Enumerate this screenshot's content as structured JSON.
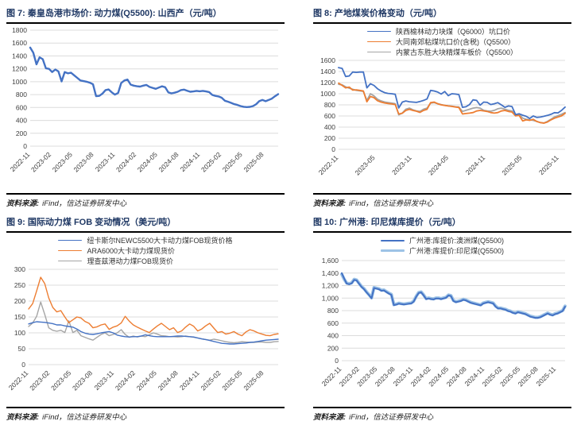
{
  "page": {
    "background": "#FFFFFF"
  },
  "figures": [
    {
      "title": "图 7:  秦皇岛港市场价: 动力煤(Q5500): 山西产（元/吨）",
      "source_label": "资料来源:",
      "source_text": "iFind，信达证券研发中心"
    },
    {
      "title": "图 8:  产地煤炭价格变动（元/吨）",
      "source_label": "资料来源:",
      "source_text": "iFind，信达证券研发中心"
    },
    {
      "title": "图 9:  国际动力煤 FOB 变动情况（美元/吨）",
      "source_label": "资料来源:",
      "source_text": "iFind，信达证券研发中心"
    },
    {
      "title": "图 10:  广州港: 印尼煤库提价（元/吨）",
      "source_label": "资料来源:",
      "source_text": "iFind，信达证券研发中心"
    }
  ],
  "colors": {
    "title_navy": "#1F3864",
    "line_blue": "#4472C4",
    "line_orange": "#ED7D31",
    "line_gray": "#A5A5A5",
    "line_lightblue": "#9DC3E6",
    "gridline": "#DCDCDC"
  },
  "chart_data": [
    {
      "type": "line",
      "title": "秦皇岛港市场价: 动力煤(Q5500): 山西产（元/吨）",
      "ylim": [
        0,
        1800
      ],
      "y_ticks": [
        1800,
        1600,
        1400,
        1200,
        1000,
        800,
        600,
        400,
        200,
        0
      ],
      "y_tick_labels": [
        "1800",
        "1600",
        "1400",
        "1200",
        "1000",
        "800",
        "600",
        "400",
        "200",
        "0"
      ],
      "categories": [
        "2022-11",
        "2023-02",
        "2023-05",
        "2023-08",
        "2023-11",
        "2024-02",
        "2024-05",
        "2024-08",
        "2024-11",
        "2025-02",
        "2025-05",
        "2025-08"
      ],
      "tick_months": [
        0,
        3,
        6,
        9,
        12,
        15,
        18,
        21,
        24,
        27,
        30,
        33
      ],
      "total_months": 35,
      "grid": "horizontal",
      "legend_position": "none",
      "series": [
        {
          "name": "秦皇岛港市场价:动力煤(Q5500):山西产",
          "color": "#4472C4",
          "width": 2.4,
          "values": [
            1530,
            1450,
            1270,
            1380,
            1350,
            1210,
            1200,
            1150,
            1190,
            1160,
            1005,
            1150,
            1130,
            1140,
            1100,
            1060,
            1020,
            1010,
            1000,
            985,
            960,
            775,
            780,
            815,
            870,
            880,
            835,
            800,
            825,
            980,
            1020,
            1035,
            955,
            940,
            930,
            925,
            940,
            950,
            920,
            905,
            890,
            910,
            930,
            915,
            835,
            820,
            830,
            845,
            870,
            878,
            860,
            845,
            850,
            858,
            852,
            858,
            850,
            840,
            795,
            780,
            772,
            752,
            705,
            690,
            672,
            652,
            640,
            622,
            612,
            606,
            610,
            622,
            652,
            700,
            718,
            698,
            718,
            738,
            775,
            808
          ]
        }
      ]
    },
    {
      "type": "line",
      "title": "产地煤炭价格变动（元/吨）",
      "ylim": [
        0,
        1600
      ],
      "y_ticks": [
        1600,
        1400,
        1200,
        1000,
        800,
        600,
        400,
        200,
        0
      ],
      "y_tick_labels": [
        "1600",
        "1400",
        "1200",
        "1000",
        "800",
        "600",
        "400",
        "200",
        "0"
      ],
      "categories": [
        "2022-11",
        "2023-05",
        "2023-11",
        "2024-05",
        "2024-11",
        "2025-05",
        "2025-11"
      ],
      "tick_months": [
        0,
        6,
        12,
        18,
        24,
        30,
        36
      ],
      "total_months": 37,
      "grid": "horizontal",
      "legend_position": "top",
      "series": [
        {
          "name": "陕西榆林动力块煤（Q6000）坑口价",
          "color": "#4472C4",
          "width": 1.8,
          "values": [
            1470,
            1455,
            1310,
            1320,
            1390,
            1385,
            1390,
            1390,
            1105,
            1180,
            1150,
            1090,
            1050,
            1020,
            1005,
            1000,
            990,
            745,
            850,
            870,
            855,
            850,
            845,
            860,
            880,
            905,
            1060,
            1050,
            1030,
            995,
            1040,
            965,
            1000,
            995,
            985,
            755,
            765,
            805,
            890,
            880,
            795,
            850,
            845,
            805,
            820,
            840,
            800,
            755,
            780,
            770,
            625,
            640,
            615,
            595,
            555,
            600,
            575,
            580,
            595,
            610,
            630,
            660,
            655,
            700,
            760
          ]
        },
        {
          "name": "大同南郊粘煤坑口价(含税)（Q5500）",
          "color": "#ED7D31",
          "width": 1.8,
          "values": [
            1190,
            1150,
            1105,
            1120,
            1065,
            1070,
            1060,
            1050,
            855,
            950,
            930,
            875,
            850,
            835,
            825,
            815,
            805,
            635,
            650,
            700,
            720,
            700,
            685,
            665,
            700,
            720,
            840,
            850,
            820,
            800,
            790,
            780,
            772,
            762,
            752,
            635,
            645,
            652,
            662,
            690,
            700,
            692,
            682,
            662,
            652,
            662,
            690,
            700,
            682,
            672,
            602,
            612,
            512,
            530,
            522,
            540,
            502,
            482,
            472,
            492,
            530,
            560,
            582,
            602,
            648
          ]
        },
        {
          "name": "内蒙古东胜大块精煤车板价（Q5500）",
          "color": "#A5A5A5",
          "width": 1.8,
          "values": [
            1170,
            1160,
            1125,
            1100,
            1080,
            1062,
            1052,
            1042,
            882,
            1000,
            962,
            902,
            872,
            852,
            842,
            832,
            822,
            622,
            652,
            722,
            742,
            712,
            692,
            682,
            722,
            742,
            832,
            842,
            822,
            806,
            792,
            782,
            776,
            766,
            762,
            682,
            702,
            722,
            742,
            752,
            742,
            702,
            692,
            686,
            702,
            730,
            742,
            722,
            702,
            692,
            622,
            632,
            562,
            542,
            532,
            522,
            502,
            482,
            475,
            502,
            542,
            582,
            605,
            632,
            662
          ]
        }
      ]
    },
    {
      "type": "line",
      "title": "国际动力煤 FOB 变动情况（美元/吨）",
      "ylim": [
        0,
        300
      ],
      "y_ticks": [
        300,
        250,
        200,
        150,
        100,
        50,
        0
      ],
      "y_tick_labels": [
        "300",
        "250",
        "200",
        "150",
        "100",
        "50",
        "0"
      ],
      "categories": [
        "2022-11",
        "2023-02",
        "2023-05",
        "2023-08",
        "2023-11",
        "2024-02",
        "2024-05",
        "2024-08",
        "2024-11",
        "2025-02",
        "2025-05",
        "2025-08"
      ],
      "tick_months": [
        0,
        3,
        6,
        9,
        12,
        15,
        18,
        21,
        24,
        27,
        30,
        33
      ],
      "total_months": 35,
      "grid": "horizontal",
      "legend_position": "top",
      "series": [
        {
          "name": "纽卡斯尔NEWC5500大卡动力煤FOB现货价格",
          "color": "#4472C4",
          "width": 1.4,
          "values": [
            128,
            132,
            135,
            134,
            133,
            131,
            129,
            125,
            125,
            122,
            120,
            118,
            112,
            104,
            99,
            96,
            95,
            97,
            100,
            102,
            104,
            100,
            93,
            90,
            88,
            87,
            88,
            88,
            90,
            94,
            91,
            89,
            88,
            88,
            88,
            88,
            89,
            90,
            90,
            89,
            88,
            87,
            84,
            81,
            79,
            76,
            73,
            70,
            67,
            66,
            65,
            65,
            66,
            67,
            68,
            70,
            71,
            73,
            75,
            77,
            78,
            79,
            80
          ]
        },
        {
          "name": "ARA6000大卡动力煤现货价",
          "color": "#ED7D31",
          "width": 1.4,
          "values": [
            175,
            192,
            232,
            275,
            255,
            210,
            180,
            166,
            170,
            150,
            132,
            141,
            150,
            147,
            136,
            130,
            116,
            119,
            125,
            128,
            111,
            118,
            122,
            131,
            152,
            137,
            125,
            118,
            112,
            106,
            101,
            112,
            122,
            130,
            120,
            110,
            116,
            101,
            106,
            118,
            128,
            121,
            106,
            112,
            122,
            130,
            115,
            101,
            104,
            96,
            99,
            104,
            96,
            91,
            103,
            110,
            106,
            100,
            96,
            92,
            91,
            95,
            97
          ]
        },
        {
          "name": "理查兹港动力煤FOB现货价",
          "color": "#A5A5A5",
          "width": 1.4,
          "values": [
            120,
            131,
            152,
            197,
            158,
            116,
            108,
            105,
            108,
            101,
            138,
            101,
            108,
            91,
            86,
            81,
            77,
            86,
            95,
            100,
            91,
            95,
            100,
            110,
            95,
            86,
            90,
            87,
            90,
            88,
            94,
            100,
            96,
            91,
            90,
            88,
            88,
            87,
            88,
            90,
            88,
            86,
            84,
            81,
            79,
            77,
            80,
            78,
            75,
            72,
            70,
            69,
            70,
            72,
            71,
            70,
            70,
            71,
            71,
            70,
            70,
            72,
            73
          ]
        }
      ]
    },
    {
      "type": "line",
      "title": "广州港: 印尼煤库提价（元/吨）",
      "ylim": [
        0,
        1600
      ],
      "y_ticks": [
        1600,
        1400,
        1200,
        1000,
        800,
        600,
        400,
        200,
        0
      ],
      "y_tick_labels": [
        "1,600",
        "1,400",
        "1,200",
        "1,000",
        "800",
        "600",
        "400",
        "200",
        "0"
      ],
      "categories": [
        "2022-11",
        "2023-02",
        "2023-05",
        "2023-08",
        "2023-11",
        "2024-02",
        "2024-05",
        "2024-08",
        "2024-11",
        "2025-02",
        "2025-05",
        "2025-08",
        "2025-11"
      ],
      "tick_months": [
        0,
        3,
        6,
        9,
        12,
        15,
        18,
        21,
        24,
        27,
        30,
        33,
        36
      ],
      "total_months": 37.5,
      "grid": "horizontal",
      "legend_position": "top",
      "series": [
        {
          "name": "广州港:库提价:澳洲煤(Q5500)",
          "color": "#4472C4",
          "width": 2,
          "values": [
            1400,
            1312,
            1232,
            1222,
            1235,
            1292,
            1282,
            1227,
            1177,
            1142,
            1092,
            1047,
            997,
            1162,
            1152,
            1142,
            1117,
            1122,
            1097,
            1072,
            1052,
            887,
            897,
            912,
            904,
            898,
            904,
            910,
            914,
            944,
            1022,
            1082,
            1092,
            1044,
            984,
            994,
            984,
            979,
            994,
            994,
            984,
            994,
            1004,
            1042,
            1032,
            954,
            934,
            944,
            954,
            974,
            964,
            944,
            924,
            914,
            904,
            894,
            884,
            914,
            924,
            934,
            924,
            914,
            864,
            834,
            834,
            824,
            814,
            794,
            784,
            764,
            754,
            774,
            764,
            754,
            744,
            724,
            704,
            694,
            684,
            684,
            694,
            714,
            734,
            754,
            734,
            724,
            744,
            754,
            774,
            794,
            864
          ]
        },
        {
          "name": "广州港:库提价:印尼煤(Q5500)",
          "color": "#9DC3E6",
          "width": 4,
          "values": [
            1380,
            1300,
            1240,
            1230,
            1245,
            1300,
            1290,
            1235,
            1185,
            1150,
            1100,
            1055,
            1005,
            1170,
            1160,
            1150,
            1125,
            1130,
            1105,
            1080,
            1060,
            895,
            905,
            920,
            912,
            906,
            912,
            918,
            922,
            952,
            1030,
            1090,
            1100,
            1052,
            992,
            1002,
            992,
            987,
            1002,
            1002,
            992,
            1002,
            1012,
            1050,
            1040,
            962,
            942,
            952,
            962,
            982,
            972,
            952,
            932,
            922,
            912,
            902,
            892,
            922,
            932,
            942,
            932,
            922,
            872,
            842,
            842,
            832,
            822,
            802,
            792,
            772,
            762,
            782,
            772,
            762,
            752,
            732,
            712,
            702,
            692,
            692,
            702,
            722,
            742,
            762,
            742,
            732,
            752,
            762,
            782,
            802,
            872
          ]
        }
      ]
    }
  ]
}
